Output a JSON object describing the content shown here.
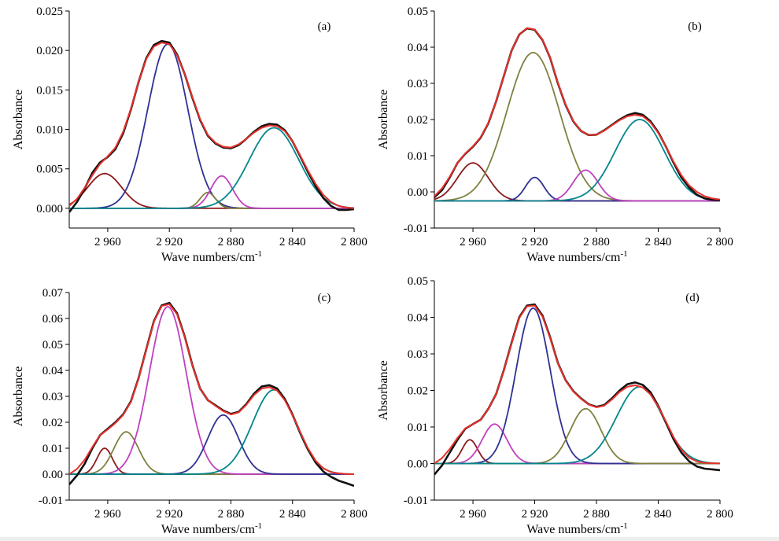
{
  "chart_data": [
    {
      "type": "line",
      "panel_label": "(a)",
      "xlabel": "Wave numbers/cm",
      "xlabel_sup": "-1",
      "ylabel": "Absorbance",
      "xlim": [
        2985,
        2800
      ],
      "ylim": [
        -0.0025,
        0.025
      ],
      "xticks": [
        2960,
        2920,
        2880,
        2840,
        2800
      ],
      "xtick_labels": [
        "2 960",
        "2 920",
        "2 880",
        "2 840",
        "2 800"
      ],
      "yticks": [
        0.0,
        0.005,
        0.01,
        0.015,
        0.02,
        0.025
      ],
      "ytick_labels": [
        "0.000",
        "0.005",
        "0.010",
        "0.015",
        "0.020",
        "0.025"
      ],
      "baseline": 0.0,
      "peaks": [
        {
          "center": 2962,
          "height": 0.0044,
          "width": 11,
          "color": "#8b1a1a"
        },
        {
          "center": 2921,
          "height": 0.0208,
          "width": 13,
          "color": "#2e3192"
        },
        {
          "center": 2895,
          "height": 0.002,
          "width": 5,
          "color": "#808040"
        },
        {
          "center": 2886,
          "height": 0.0041,
          "width": 7,
          "color": "#c040c0"
        },
        {
          "center": 2852,
          "height": 0.0102,
          "width": 16,
          "color": "#00868b"
        }
      ],
      "series": [
        {
          "name": "",
          "color": "#111111",
          "x": [
            2985,
            2980,
            2975,
            2970,
            2965,
            2960,
            2955,
            2950,
            2945,
            2940,
            2935,
            2930,
            2925,
            2920,
            2915,
            2910,
            2905,
            2900,
            2895,
            2890,
            2885,
            2880,
            2875,
            2870,
            2865,
            2860,
            2855,
            2850,
            2845,
            2840,
            2835,
            2830,
            2825,
            2820,
            2815,
            2810,
            2805,
            2800
          ],
          "y": [
            -0.0005,
            0.0008,
            0.0025,
            0.0045,
            0.0058,
            0.0065,
            0.0075,
            0.0095,
            0.0125,
            0.016,
            0.019,
            0.0207,
            0.0212,
            0.021,
            0.0195,
            0.017,
            0.014,
            0.0112,
            0.0092,
            0.0082,
            0.0077,
            0.0076,
            0.008,
            0.0088,
            0.0097,
            0.0104,
            0.0107,
            0.0106,
            0.0099,
            0.0085,
            0.0066,
            0.0046,
            0.0028,
            0.0013,
            0.0003,
            -0.0002,
            -0.0002,
            -0.0001
          ]
        },
        {
          "name": "",
          "color": "#e8302a",
          "x": [
            2985,
            2980,
            2975,
            2970,
            2965,
            2960,
            2955,
            2950,
            2945,
            2940,
            2935,
            2930,
            2925,
            2920,
            2915,
            2910,
            2905,
            2900,
            2895,
            2890,
            2885,
            2880,
            2875,
            2870,
            2865,
            2860,
            2855,
            2850,
            2845,
            2840,
            2835,
            2830,
            2825,
            2820,
            2815,
            2810,
            2805,
            2800
          ],
          "y": [
            0.0003,
            0.0012,
            0.0026,
            0.0042,
            0.0056,
            0.0066,
            0.0077,
            0.0097,
            0.0126,
            0.016,
            0.0189,
            0.0205,
            0.021,
            0.0208,
            0.0194,
            0.017,
            0.0141,
            0.0113,
            0.0093,
            0.0083,
            0.0078,
            0.0077,
            0.0081,
            0.0088,
            0.0096,
            0.0102,
            0.0105,
            0.0104,
            0.0098,
            0.0085,
            0.0067,
            0.0048,
            0.0031,
            0.0017,
            0.0008,
            0.0003,
            0.0001,
            0.0
          ]
        }
      ]
    },
    {
      "type": "line",
      "panel_label": "(b)",
      "xlabel": "Wave numbers/cm",
      "xlabel_sup": "-1",
      "ylabel": "Absorbance",
      "xlim": [
        2985,
        2800
      ],
      "ylim": [
        -0.01,
        0.05
      ],
      "xticks": [
        2960,
        2920,
        2880,
        2840,
        2800
      ],
      "xtick_labels": [
        "2 960",
        "2 920",
        "2 880",
        "2 840",
        "2 800"
      ],
      "yticks": [
        -0.01,
        0.0,
        0.01,
        0.02,
        0.03,
        0.04,
        0.05
      ],
      "ytick_labels": [
        "-0.01",
        "0.00",
        "0.01",
        "0.02",
        "0.03",
        "0.04",
        "0.05"
      ],
      "baseline": -0.0025,
      "peaks": [
        {
          "center": 2960,
          "height": 0.0105,
          "width": 10,
          "color": "#8b1a1a"
        },
        {
          "center": 2921,
          "height": 0.041,
          "width": 17,
          "color": "#808040"
        },
        {
          "center": 2920,
          "height": 0.0065,
          "width": 6,
          "color": "#2e3192"
        },
        {
          "center": 2887,
          "height": 0.0085,
          "width": 8,
          "color": "#c040c0"
        },
        {
          "center": 2852,
          "height": 0.0225,
          "width": 16,
          "color": "#00868b"
        }
      ],
      "series": [
        {
          "name": "",
          "color": "#111111",
          "x": [
            2985,
            2980,
            2975,
            2970,
            2965,
            2960,
            2955,
            2950,
            2945,
            2940,
            2935,
            2930,
            2925,
            2920,
            2915,
            2910,
            2905,
            2900,
            2895,
            2890,
            2885,
            2880,
            2875,
            2870,
            2865,
            2860,
            2855,
            2850,
            2845,
            2840,
            2835,
            2830,
            2825,
            2820,
            2815,
            2810,
            2805,
            2800
          ],
          "y": [
            -0.0015,
            0.0005,
            0.004,
            0.008,
            0.0105,
            0.0125,
            0.015,
            0.019,
            0.025,
            0.032,
            0.039,
            0.0435,
            0.0452,
            0.0448,
            0.042,
            0.037,
            0.03,
            0.024,
            0.0195,
            0.0168,
            0.0157,
            0.0158,
            0.017,
            0.0185,
            0.02,
            0.0212,
            0.0218,
            0.0213,
            0.0195,
            0.0165,
            0.0125,
            0.008,
            0.004,
            0.0012,
            -0.0008,
            -0.0018,
            -0.0022,
            -0.0023
          ]
        },
        {
          "name": "",
          "color": "#e8302a",
          "x": [
            2985,
            2980,
            2975,
            2970,
            2965,
            2960,
            2955,
            2950,
            2945,
            2940,
            2935,
            2930,
            2925,
            2920,
            2915,
            2910,
            2905,
            2900,
            2895,
            2890,
            2885,
            2880,
            2875,
            2870,
            2865,
            2860,
            2855,
            2850,
            2845,
            2840,
            2835,
            2830,
            2825,
            2820,
            2815,
            2810,
            2805,
            2800
          ],
          "y": [
            -0.0012,
            0.001,
            0.0042,
            0.008,
            0.0106,
            0.0126,
            0.0151,
            0.0191,
            0.025,
            0.032,
            0.039,
            0.0435,
            0.0453,
            0.0449,
            0.0421,
            0.0371,
            0.0301,
            0.0241,
            0.0196,
            0.0168,
            0.0157,
            0.0158,
            0.0169,
            0.0184,
            0.0198,
            0.0209,
            0.0213,
            0.0209,
            0.0192,
            0.0163,
            0.0125,
            0.0083,
            0.0046,
            0.0018,
            0.0,
            -0.0012,
            -0.0018,
            -0.0021
          ]
        }
      ]
    },
    {
      "type": "line",
      "panel_label": "(c)",
      "xlabel": "Wave numbers/cm",
      "xlabel_sup": "-1",
      "ylabel": "Absorbance",
      "xlim": [
        2985,
        2800
      ],
      "ylim": [
        -0.01,
        0.07
      ],
      "xticks": [
        2960,
        2920,
        2880,
        2840,
        2800
      ],
      "xtick_labels": [
        "2 960",
        "2 920",
        "2 880",
        "2 840",
        "2 800"
      ],
      "yticks": [
        -0.01,
        0.0,
        0.01,
        0.02,
        0.03,
        0.04,
        0.05,
        0.06,
        0.07
      ],
      "ytick_labels": [
        "-0.01",
        "0.00",
        "0.01",
        "0.02",
        "0.03",
        "0.04",
        "0.05",
        "0.06",
        "0.07"
      ],
      "baseline": 0.0,
      "peaks": [
        {
          "center": 2962,
          "height": 0.01,
          "width": 5,
          "color": "#8b1a1a"
        },
        {
          "center": 2948,
          "height": 0.0163,
          "width": 8,
          "color": "#808040"
        },
        {
          "center": 2921,
          "height": 0.0645,
          "width": 12,
          "color": "#c040c0"
        },
        {
          "center": 2885,
          "height": 0.0228,
          "width": 10,
          "color": "#2e3192"
        },
        {
          "center": 2852,
          "height": 0.0325,
          "width": 14,
          "color": "#00868b"
        }
      ],
      "series": [
        {
          "name": "",
          "color": "#111111",
          "x": [
            2985,
            2980,
            2975,
            2970,
            2965,
            2960,
            2955,
            2950,
            2945,
            2940,
            2935,
            2930,
            2925,
            2920,
            2915,
            2910,
            2905,
            2900,
            2895,
            2890,
            2885,
            2880,
            2875,
            2870,
            2865,
            2860,
            2855,
            2850,
            2845,
            2840,
            2835,
            2830,
            2825,
            2820,
            2815,
            2810,
            2805,
            2800
          ],
          "y": [
            -0.004,
            -0.0005,
            0.004,
            0.01,
            0.015,
            0.0175,
            0.02,
            0.023,
            0.028,
            0.037,
            0.048,
            0.059,
            0.065,
            0.066,
            0.062,
            0.053,
            0.042,
            0.033,
            0.0285,
            0.0265,
            0.0245,
            0.0232,
            0.024,
            0.027,
            0.031,
            0.0338,
            0.0343,
            0.033,
            0.029,
            0.023,
            0.016,
            0.0095,
            0.0045,
            0.001,
            -0.001,
            -0.0025,
            -0.0035,
            -0.0045
          ]
        },
        {
          "name": "",
          "color": "#e8302a",
          "x": [
            2985,
            2980,
            2975,
            2970,
            2965,
            2960,
            2955,
            2950,
            2945,
            2940,
            2935,
            2930,
            2925,
            2920,
            2915,
            2910,
            2905,
            2900,
            2895,
            2890,
            2885,
            2880,
            2875,
            2870,
            2865,
            2860,
            2855,
            2850,
            2845,
            2840,
            2835,
            2830,
            2825,
            2820,
            2815,
            2810,
            2805,
            2800
          ],
          "y": [
            0.0,
            0.002,
            0.0055,
            0.0105,
            0.015,
            0.0172,
            0.0197,
            0.0228,
            0.0278,
            0.0368,
            0.0478,
            0.0588,
            0.0648,
            0.0655,
            0.0616,
            0.0528,
            0.0418,
            0.033,
            0.0285,
            0.0263,
            0.0243,
            0.023,
            0.0238,
            0.0267,
            0.0305,
            0.033,
            0.0335,
            0.0322,
            0.0285,
            0.0228,
            0.0162,
            0.01,
            0.0052,
            0.0022,
            0.0008,
            0.0003,
            0.0001,
            0.0
          ]
        }
      ]
    },
    {
      "type": "line",
      "panel_label": "(d)",
      "xlabel": "Wave numbers/cm",
      "xlabel_sup": "-1",
      "ylabel": "Absorbance",
      "xlim": [
        2985,
        2800
      ],
      "ylim": [
        -0.01,
        0.05
      ],
      "xticks": [
        2960,
        2920,
        2880,
        2840,
        2800
      ],
      "xtick_labels": [
        "2 960",
        "2 920",
        "2 880",
        "2 840",
        "2 800"
      ],
      "yticks": [
        -0.01,
        0.0,
        0.01,
        0.02,
        0.03,
        0.04,
        0.05
      ],
      "ytick_labels": [
        "-0.01",
        "0.00",
        "0.01",
        "0.02",
        "0.03",
        "0.04",
        "0.05"
      ],
      "baseline": 0.0,
      "peaks": [
        {
          "center": 2962,
          "height": 0.0065,
          "width": 5,
          "color": "#8b1a1a"
        },
        {
          "center": 2946,
          "height": 0.0108,
          "width": 8,
          "color": "#c040c0"
        },
        {
          "center": 2921,
          "height": 0.0425,
          "width": 11,
          "color": "#2e3192"
        },
        {
          "center": 2887,
          "height": 0.015,
          "width": 10,
          "color": "#808040"
        },
        {
          "center": 2852,
          "height": 0.021,
          "width": 15,
          "color": "#00868b"
        }
      ],
      "series": [
        {
          "name": "",
          "color": "#111111",
          "x": [
            2985,
            2980,
            2975,
            2970,
            2965,
            2960,
            2955,
            2950,
            2945,
            2940,
            2935,
            2930,
            2925,
            2920,
            2915,
            2910,
            2905,
            2900,
            2895,
            2890,
            2885,
            2880,
            2875,
            2870,
            2865,
            2860,
            2855,
            2850,
            2845,
            2840,
            2835,
            2830,
            2825,
            2820,
            2815,
            2810,
            2805,
            2800
          ],
          "y": [
            -0.003,
            -0.0005,
            0.003,
            0.0065,
            0.0095,
            0.0108,
            0.012,
            0.015,
            0.019,
            0.0255,
            0.033,
            0.04,
            0.0432,
            0.0435,
            0.0405,
            0.0345,
            0.0275,
            0.0228,
            0.0198,
            0.0178,
            0.0162,
            0.0155,
            0.016,
            0.0178,
            0.02,
            0.0217,
            0.0222,
            0.0215,
            0.0195,
            0.0158,
            0.0112,
            0.0066,
            0.003,
            0.0006,
            -0.0008,
            -0.0014,
            -0.0016,
            -0.0018
          ]
        },
        {
          "name": "",
          "color": "#e8302a",
          "x": [
            2985,
            2980,
            2975,
            2970,
            2965,
            2960,
            2955,
            2950,
            2945,
            2940,
            2935,
            2930,
            2925,
            2920,
            2915,
            2910,
            2905,
            2900,
            2895,
            2890,
            2885,
            2880,
            2875,
            2870,
            2865,
            2860,
            2855,
            2850,
            2845,
            2840,
            2835,
            2830,
            2825,
            2820,
            2815,
            2810,
            2805,
            2800
          ],
          "y": [
            0.0,
            0.0015,
            0.004,
            0.007,
            0.0096,
            0.0108,
            0.012,
            0.015,
            0.019,
            0.0254,
            0.0328,
            0.0398,
            0.043,
            0.0432,
            0.0402,
            0.0343,
            0.0274,
            0.0227,
            0.0197,
            0.0177,
            0.0161,
            0.0154,
            0.0158,
            0.0175,
            0.0196,
            0.021,
            0.0214,
            0.0208,
            0.0189,
            0.0156,
            0.0115,
            0.0072,
            0.0038,
            0.0016,
            0.0006,
            0.0002,
            0.0001,
            0.0
          ]
        }
      ]
    }
  ]
}
